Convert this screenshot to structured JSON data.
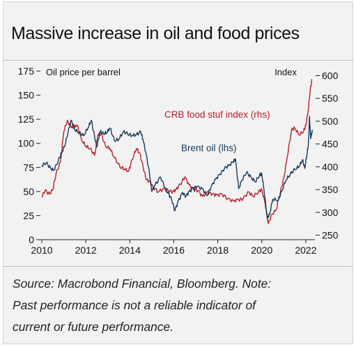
{
  "title": "Massive increase in oil and food prices",
  "source_lines": [
    "Source: Macrobond Financial, Bloomberg. Note:",
    "Past performance is not a reliable indicator of",
    "current or future performance."
  ],
  "colors": {
    "brent": "#173a5a",
    "crb": "#b5222c",
    "background": "#f2f2f2",
    "text": "#111111"
  },
  "chart_data": {
    "type": "line",
    "x_axis": {
      "ticks": [
        "2010",
        "2012",
        "2014",
        "2016",
        "2018",
        "2020",
        "2022"
      ],
      "range": [
        2010,
        2022.35
      ]
    },
    "y_left": {
      "label": "Oil price per barrel",
      "range": [
        0,
        175
      ],
      "ticks": [
        0,
        25,
        50,
        75,
        100,
        125,
        150,
        175
      ]
    },
    "y_right": {
      "label": "Index",
      "range": [
        240,
        610
      ],
      "ticks": [
        250,
        300,
        350,
        400,
        450,
        500,
        550,
        600
      ]
    },
    "grid": false,
    "annotations": [
      {
        "text": "CRB food stuf index (rhs)",
        "series": "crb"
      },
      {
        "text": "Brent oil (lhs)",
        "series": "brent"
      }
    ],
    "series": [
      {
        "name": "Brent oil (lhs)",
        "axis": "left",
        "color": "#173a5a",
        "points": [
          [
            2010.0,
            77
          ],
          [
            2010.2,
            80
          ],
          [
            2010.4,
            74
          ],
          [
            2010.55,
            72
          ],
          [
            2010.75,
            82
          ],
          [
            2010.9,
            90
          ],
          [
            2011.05,
            98
          ],
          [
            2011.2,
            112
          ],
          [
            2011.35,
            124
          ],
          [
            2011.5,
            114
          ],
          [
            2011.7,
            111
          ],
          [
            2011.9,
            108
          ],
          [
            2012.1,
            116
          ],
          [
            2012.25,
            124
          ],
          [
            2012.4,
            107
          ],
          [
            2012.5,
            96
          ],
          [
            2012.65,
            112
          ],
          [
            2012.8,
            110
          ],
          [
            2012.95,
            111
          ],
          [
            2013.1,
            116
          ],
          [
            2013.3,
            103
          ],
          [
            2013.5,
            104
          ],
          [
            2013.7,
            112
          ],
          [
            2013.9,
            110
          ],
          [
            2014.1,
            108
          ],
          [
            2014.3,
            109
          ],
          [
            2014.5,
            112
          ],
          [
            2014.6,
            104
          ],
          [
            2014.75,
            88
          ],
          [
            2014.9,
            68
          ],
          [
            2015.0,
            50
          ],
          [
            2015.15,
            57
          ],
          [
            2015.4,
            65
          ],
          [
            2015.6,
            54
          ],
          [
            2015.75,
            48
          ],
          [
            2015.9,
            42
          ],
          [
            2016.05,
            30
          ],
          [
            2016.2,
            40
          ],
          [
            2016.4,
            49
          ],
          [
            2016.55,
            45
          ],
          [
            2016.7,
            50
          ],
          [
            2016.9,
            54
          ],
          [
            2017.05,
            55
          ],
          [
            2017.3,
            53
          ],
          [
            2017.5,
            46
          ],
          [
            2017.7,
            55
          ],
          [
            2017.9,
            63
          ],
          [
            2018.1,
            68
          ],
          [
            2018.3,
            74
          ],
          [
            2018.5,
            77
          ],
          [
            2018.7,
            81
          ],
          [
            2018.8,
            84
          ],
          [
            2018.95,
            53
          ],
          [
            2019.1,
            62
          ],
          [
            2019.3,
            70
          ],
          [
            2019.5,
            65
          ],
          [
            2019.7,
            60
          ],
          [
            2019.9,
            67
          ],
          [
            2020.0,
            68
          ],
          [
            2020.1,
            52
          ],
          [
            2020.25,
            22
          ],
          [
            2020.35,
            26
          ],
          [
            2020.5,
            42
          ],
          [
            2020.75,
            41
          ],
          [
            2020.9,
            50
          ],
          [
            2021.1,
            62
          ],
          [
            2021.3,
            68
          ],
          [
            2021.5,
            73
          ],
          [
            2021.7,
            76
          ],
          [
            2021.85,
            83
          ],
          [
            2021.95,
            74
          ],
          [
            2022.05,
            88
          ],
          [
            2022.12,
            100
          ],
          [
            2022.17,
            128
          ],
          [
            2022.22,
            105
          ],
          [
            2022.3,
            114
          ]
        ]
      },
      {
        "name": "CRB food stuf index (rhs)",
        "axis": "right",
        "color": "#b5222c",
        "points": [
          [
            2010.0,
            335
          ],
          [
            2010.15,
            348
          ],
          [
            2010.35,
            340
          ],
          [
            2010.5,
            350
          ],
          [
            2010.65,
            385
          ],
          [
            2010.85,
            410
          ],
          [
            2011.0,
            478
          ],
          [
            2011.15,
            500
          ],
          [
            2011.3,
            490
          ],
          [
            2011.45,
            485
          ],
          [
            2011.6,
            492
          ],
          [
            2011.8,
            460
          ],
          [
            2012.0,
            445
          ],
          [
            2012.2,
            440
          ],
          [
            2012.4,
            425
          ],
          [
            2012.55,
            470
          ],
          [
            2012.7,
            472
          ],
          [
            2012.9,
            445
          ],
          [
            2013.1,
            440
          ],
          [
            2013.3,
            420
          ],
          [
            2013.55,
            400
          ],
          [
            2013.75,
            395
          ],
          [
            2013.95,
            390
          ],
          [
            2014.1,
            415
          ],
          [
            2014.3,
            440
          ],
          [
            2014.45,
            430
          ],
          [
            2014.6,
            400
          ],
          [
            2014.75,
            372
          ],
          [
            2014.9,
            368
          ],
          [
            2015.05,
            355
          ],
          [
            2015.3,
            345
          ],
          [
            2015.55,
            352
          ],
          [
            2015.75,
            348
          ],
          [
            2015.95,
            345
          ],
          [
            2016.1,
            350
          ],
          [
            2016.3,
            362
          ],
          [
            2016.5,
            378
          ],
          [
            2016.7,
            360
          ],
          [
            2016.9,
            350
          ],
          [
            2017.1,
            348
          ],
          [
            2017.3,
            335
          ],
          [
            2017.55,
            345
          ],
          [
            2017.75,
            340
          ],
          [
            2017.95,
            338
          ],
          [
            2018.2,
            340
          ],
          [
            2018.45,
            330
          ],
          [
            2018.7,
            325
          ],
          [
            2018.95,
            328
          ],
          [
            2019.15,
            330
          ],
          [
            2019.4,
            345
          ],
          [
            2019.6,
            335
          ],
          [
            2019.85,
            345
          ],
          [
            2020.0,
            350
          ],
          [
            2020.15,
            320
          ],
          [
            2020.3,
            275
          ],
          [
            2020.45,
            295
          ],
          [
            2020.65,
            305
          ],
          [
            2020.85,
            345
          ],
          [
            2021.0,
            375
          ],
          [
            2021.15,
            420
          ],
          [
            2021.35,
            480
          ],
          [
            2021.5,
            485
          ],
          [
            2021.7,
            470
          ],
          [
            2021.9,
            478
          ],
          [
            2022.0,
            490
          ],
          [
            2022.1,
            520
          ],
          [
            2022.2,
            568
          ],
          [
            2022.28,
            592
          ]
        ]
      }
    ]
  }
}
